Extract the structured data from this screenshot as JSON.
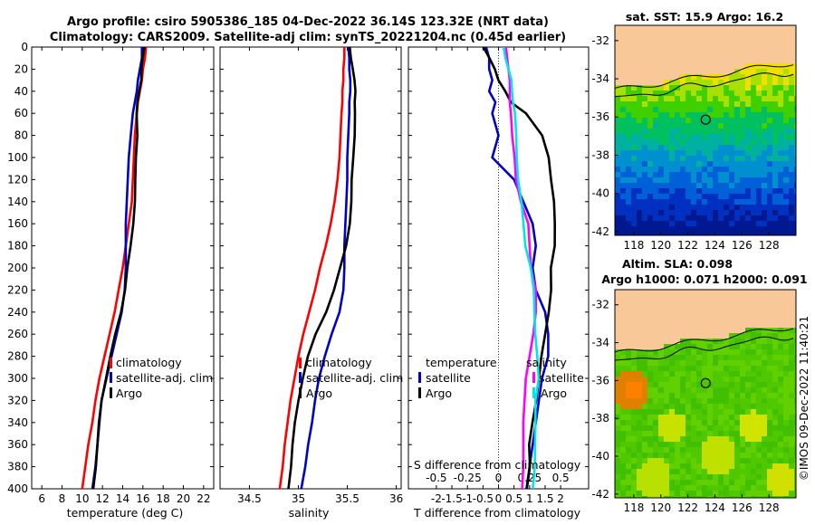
{
  "titles": {
    "line1": "Argo profile: csiro 5905386_185 04-Dec-2022 36.14S 123.32E (NRT data)",
    "line2": "Climatology: CARS2009. Satellite-adj clim: synTS_20221204.nc (0.45d earlier)"
  },
  "colors": {
    "climatology": "#ff0000",
    "satellite": "#0000cc",
    "argo": "#000000",
    "satellite_s": "#ff00ff",
    "satellite_t": "#00e5e5",
    "land": "#f8c898"
  },
  "chart_data": [
    {
      "type": "line",
      "id": "temperature",
      "xlabel": "temperature (deg C)",
      "xlim": [
        5,
        23
      ],
      "ylim": [
        400,
        0
      ],
      "xticks": [
        "6",
        "8",
        "10",
        "12",
        "14",
        "16",
        "18",
        "20",
        "22"
      ],
      "yticks": [
        "0",
        "20",
        "40",
        "60",
        "80",
        "100",
        "120",
        "140",
        "160",
        "180",
        "200",
        "220",
        "240",
        "260",
        "280",
        "300",
        "320",
        "340",
        "360",
        "380",
        "400"
      ],
      "depth": [
        0,
        10,
        20,
        30,
        40,
        50,
        60,
        80,
        100,
        120,
        140,
        160,
        180,
        200,
        220,
        240,
        260,
        280,
        300,
        320,
        340,
        360,
        380,
        400
      ],
      "series": [
        {
          "name": "climatology",
          "color": "#ff0000",
          "values": [
            16.3,
            16.2,
            16.0,
            15.9,
            15.7,
            15.5,
            15.4,
            15.2,
            15.1,
            15.0,
            14.9,
            14.6,
            14.3,
            14.0,
            13.6,
            13.2,
            12.7,
            12.2,
            11.7,
            11.3,
            11.0,
            10.6,
            10.3,
            10.0
          ]
        },
        {
          "name": "satellite-adj. clim",
          "color": "#0000cc",
          "values": [
            15.9,
            15.9,
            15.7,
            15.5,
            15.4,
            15.2,
            15.0,
            14.8,
            14.6,
            14.5,
            14.4,
            14.3,
            14.3,
            14.3,
            14.2,
            13.9,
            13.4,
            12.9,
            12.4,
            11.9,
            11.7,
            11.5,
            11.3,
            11.0
          ]
        },
        {
          "name": "Argo",
          "color": "#000000",
          "values": [
            16.1,
            16.0,
            15.9,
            15.8,
            15.6,
            15.5,
            15.4,
            15.4,
            15.3,
            15.3,
            15.2,
            15.0,
            14.8,
            14.5,
            14.2,
            13.8,
            13.3,
            12.8,
            12.3,
            11.9,
            11.7,
            11.5,
            11.3,
            11.1
          ]
        }
      ],
      "legend": [
        "climatology",
        "satellite-adj. clim",
        "Argo"
      ]
    },
    {
      "type": "line",
      "id": "salinity",
      "xlabel": "salinity",
      "xlim": [
        34.2,
        36.05
      ],
      "ylim": [
        400,
        0
      ],
      "xticks": [
        "34.5",
        "35",
        "35.5",
        "36"
      ],
      "depth": [
        0,
        10,
        20,
        30,
        40,
        50,
        60,
        80,
        100,
        120,
        140,
        160,
        180,
        200,
        220,
        240,
        260,
        280,
        300,
        320,
        340,
        360,
        380,
        400
      ],
      "series": [
        {
          "name": "climatology",
          "color": "#ff0000",
          "values": [
            35.47,
            35.47,
            35.46,
            35.46,
            35.45,
            35.45,
            35.44,
            35.43,
            35.42,
            35.4,
            35.37,
            35.33,
            35.28,
            35.22,
            35.17,
            35.11,
            35.05,
            35.0,
            34.96,
            34.92,
            34.89,
            34.86,
            34.84,
            34.81
          ]
        },
        {
          "name": "satellite-adj. clim",
          "color": "#0000cc",
          "values": [
            35.51,
            35.52,
            35.52,
            35.53,
            35.53,
            35.52,
            35.52,
            35.51,
            35.5,
            35.5,
            35.49,
            35.48,
            35.47,
            35.47,
            35.46,
            35.42,
            35.34,
            35.27,
            35.21,
            35.17,
            35.14,
            35.1,
            35.07,
            35.03
          ]
        },
        {
          "name": "Argo",
          "color": "#000000",
          "values": [
            35.52,
            35.54,
            35.56,
            35.57,
            35.58,
            35.58,
            35.58,
            35.57,
            35.56,
            35.55,
            35.54,
            35.52,
            35.49,
            35.43,
            35.36,
            35.28,
            35.18,
            35.1,
            35.04,
            35.0,
            34.97,
            34.94,
            34.92,
            34.9
          ]
        }
      ],
      "legend": [
        "climatology",
        "satellite-adj. clim",
        "Argo"
      ]
    },
    {
      "type": "line",
      "id": "difference",
      "xlabel": "T difference from climatology",
      "xlabel2": "S difference from climatology",
      "xlim": [
        -2.9,
        2.9
      ],
      "ylim": [
        400,
        0
      ],
      "xticks": [
        "-2",
        "-1.5",
        "-1",
        "-0.5",
        "0",
        "0.5",
        "1",
        "1.5",
        "2"
      ],
      "xticks2": [
        "-0.5",
        "-0.25",
        "0",
        "0.25",
        "0.5"
      ],
      "depth": [
        0,
        10,
        20,
        30,
        40,
        50,
        60,
        80,
        100,
        120,
        140,
        160,
        180,
        200,
        220,
        240,
        260,
        280,
        300,
        320,
        340,
        360,
        380,
        400
      ],
      "series": [
        {
          "name": "temperature satellite",
          "color": "#0000cc",
          "values": [
            -0.4,
            -0.3,
            -0.3,
            -0.2,
            -0.3,
            -0.1,
            -0.2,
            0.0,
            -0.2,
            0.5,
            0.8,
            1.1,
            1.2,
            1.1,
            1.2,
            1.5,
            1.6,
            1.6,
            1.4,
            1.3,
            1.2,
            1.1,
            1.0,
            0.9
          ]
        },
        {
          "name": "temperature Argo",
          "color": "#000000",
          "values": [
            -0.5,
            -0.3,
            -0.1,
            0.0,
            0.2,
            0.4,
            0.9,
            1.4,
            1.6,
            1.7,
            1.8,
            1.8,
            1.8,
            1.7,
            1.7,
            1.6,
            1.5,
            1.4,
            1.3,
            1.2,
            1.1,
            1.0,
            1.0,
            0.9
          ]
        },
        {
          "name": "salinity satellite",
          "color": "#ff00ff",
          "values": [
            0.06,
            0.07,
            0.08,
            0.09,
            0.09,
            0.09,
            0.1,
            0.11,
            0.13,
            0.14,
            0.18,
            0.24,
            0.25,
            0.26,
            0.3,
            0.3,
            0.28,
            0.25,
            0.22,
            0.21,
            0.2,
            0.2,
            0.2,
            0.19
          ]
        },
        {
          "name": "salinity Argo",
          "color": "#00e5e5",
          "values": [
            0.04,
            0.06,
            0.08,
            0.1,
            0.11,
            0.12,
            0.13,
            0.14,
            0.15,
            0.16,
            0.18,
            0.2,
            0.22,
            0.26,
            0.28,
            0.29,
            0.3,
            0.31,
            0.32,
            0.3,
            0.3,
            0.29,
            0.29,
            0.28
          ]
        }
      ],
      "legend_left_title": "temperature",
      "legend_right_title": "salinity",
      "legend_left": [
        "satellite",
        "Argo"
      ],
      "legend_right": [
        "satellite",
        "Argo"
      ]
    }
  ],
  "maps": {
    "sst": {
      "title": "sat. SST: 15.9 Argo: 16.2"
    },
    "sla": {
      "title1": "Altim. SLA: 0.098",
      "title2": "Argo h1000: 0.071 h2000: 0.091"
    },
    "lon_ticks": [
      "118",
      "120",
      "122",
      "124",
      "126",
      "128"
    ],
    "lat_ticks": [
      "-32",
      "-34",
      "-36",
      "-38",
      "-40",
      "-42"
    ],
    "credit": "©IMOS 09-Dec-2022 11:40:21"
  }
}
